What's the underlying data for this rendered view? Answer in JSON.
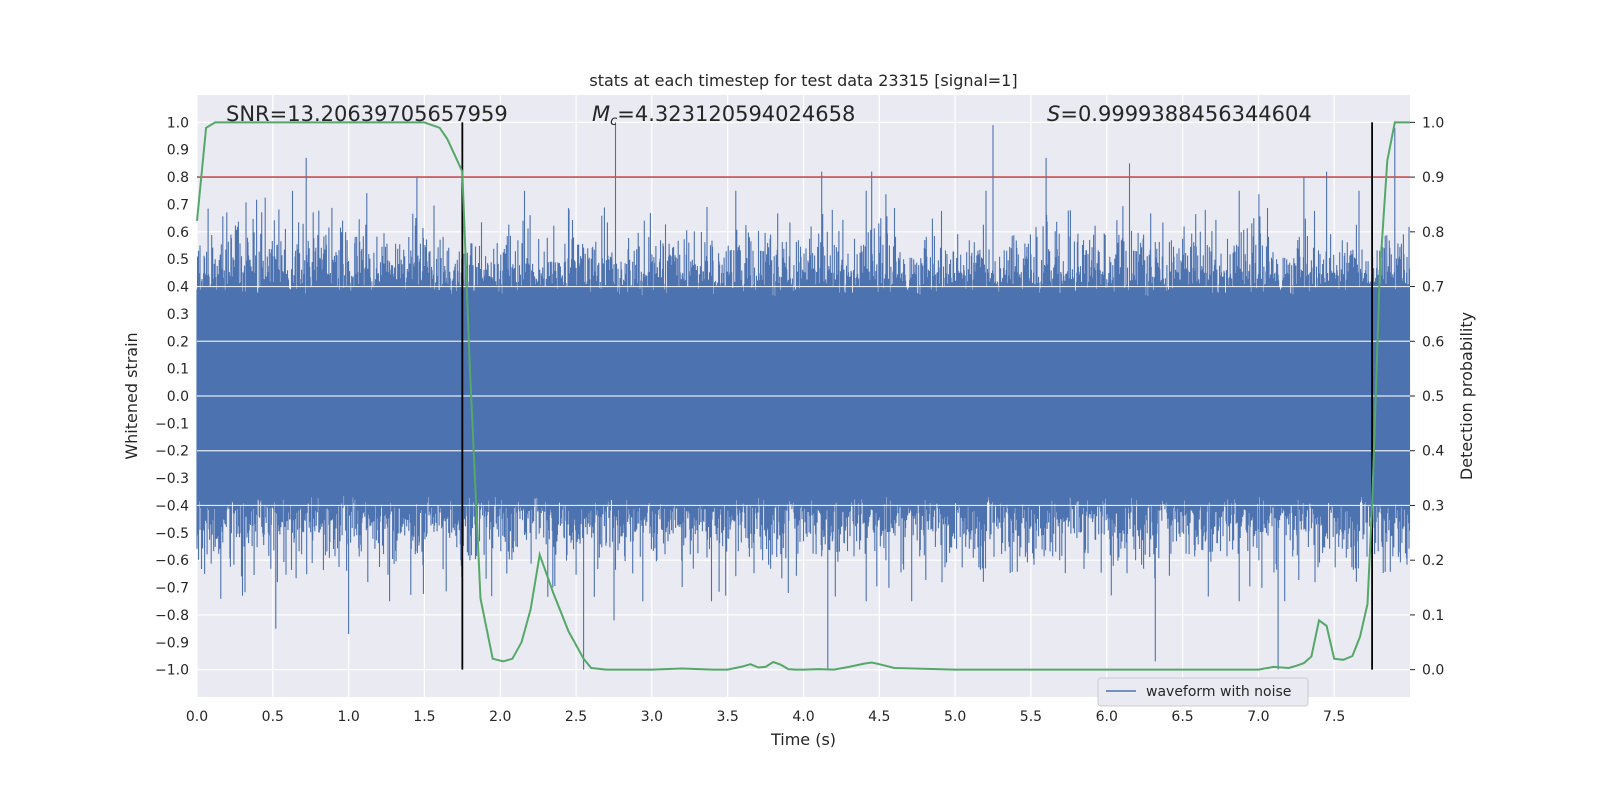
{
  "chart_data": {
    "type": "line",
    "title": "stats at each timestep for test data 23315 [signal=1]",
    "xlabel": "Time (s)",
    "ylabel_left": "Whitened strain",
    "ylabel_right": "Detection probability",
    "xlim": [
      0.0,
      8.0
    ],
    "ylim_left": [
      -1.1,
      1.1
    ],
    "ylim_right": [
      -0.05,
      1.05
    ],
    "x_ticks": [
      0.0,
      0.5,
      1.0,
      1.5,
      2.0,
      2.5,
      3.0,
      3.5,
      4.0,
      4.5,
      5.0,
      5.5,
      6.0,
      6.5,
      7.0,
      7.5
    ],
    "x_tick_labels": [
      "0.0",
      "0.5",
      "1.0",
      "1.5",
      "2.0",
      "2.5",
      "3.0",
      "3.5",
      "4.0",
      "4.5",
      "5.0",
      "5.5",
      "6.0",
      "6.5",
      "7.0",
      "7.5"
    ],
    "y_left_ticks": [
      1.0,
      0.9,
      0.8,
      0.7,
      0.6,
      0.5,
      0.4,
      0.3,
      0.2,
      0.1,
      0.0,
      -0.1,
      -0.2,
      -0.3,
      -0.4,
      -0.5,
      -0.6,
      -0.7,
      -0.8,
      -0.9,
      -1.0
    ],
    "y_left_tick_labels": [
      "1.0",
      "0.9",
      "0.8",
      "0.7",
      "0.6",
      "0.5",
      "0.4",
      "0.3",
      "0.2",
      "0.1",
      "0.0",
      "−0.1",
      "−0.2",
      "−0.3",
      "−0.4",
      "−0.5",
      "−0.6",
      "−0.7",
      "−0.8",
      "−0.9",
      "−1.0"
    ],
    "y_right_ticks": [
      1.0,
      0.9,
      0.8,
      0.7,
      0.6,
      0.5,
      0.4,
      0.3,
      0.2,
      0.1,
      0.0
    ],
    "y_right_tick_labels": [
      "1.0",
      "0.9",
      "0.8",
      "0.7",
      "0.6",
      "0.5",
      "0.4",
      "0.3",
      "0.2",
      "0.1",
      "0.0"
    ],
    "annotations": {
      "snr": "SNR=13.206397056579 59",
      "mc": "Mᴄ=4.323120594024658",
      "s": "S=0.9999388456344604"
    },
    "threshold_line": {
      "axis": "right",
      "value": 0.9,
      "color": "#c44e52"
    },
    "vertical_markers": {
      "x": [
        1.75,
        7.75
      ],
      "color": "#000000"
    },
    "series": [
      {
        "name": "waveform with noise",
        "axis": "left",
        "color": "#4c72b0",
        "kind": "noise",
        "envelope_typical": 0.55,
        "peaks": [
          {
            "x": 0.02,
            "y": 0.55
          },
          {
            "x": 0.05,
            "y": -0.65
          },
          {
            "x": 0.3,
            "y": -0.73
          },
          {
            "x": 0.52,
            "y": -0.85
          },
          {
            "x": 0.72,
            "y": 0.87
          },
          {
            "x": 1.0,
            "y": -0.87
          },
          {
            "x": 1.45,
            "y": 0.8
          },
          {
            "x": 1.74,
            "y": -0.6
          },
          {
            "x": 2.55,
            "y": -1.0
          },
          {
            "x": 2.76,
            "y": 1.0
          },
          {
            "x": 2.75,
            "y": -0.82
          },
          {
            "x": 3.9,
            "y": -0.72
          },
          {
            "x": 4.12,
            "y": 0.82
          },
          {
            "x": 4.16,
            "y": -1.0
          },
          {
            "x": 4.45,
            "y": 0.82
          },
          {
            "x": 5.25,
            "y": 0.99
          },
          {
            "x": 5.6,
            "y": 0.87
          },
          {
            "x": 6.15,
            "y": 0.85
          },
          {
            "x": 6.32,
            "y": -0.97
          },
          {
            "x": 7.13,
            "y": -1.0
          },
          {
            "x": 7.3,
            "y": 0.8
          },
          {
            "x": 7.45,
            "y": 0.82
          },
          {
            "x": 7.9,
            "y": 0.98
          }
        ]
      },
      {
        "name": "detection probability",
        "axis": "right",
        "color": "#55a868",
        "x": [
          0.0,
          0.06,
          0.12,
          0.25,
          0.5,
          1.0,
          1.5,
          1.6,
          1.65,
          1.7,
          1.75,
          1.8,
          1.87,
          1.95,
          2.02,
          2.08,
          2.14,
          2.2,
          2.26,
          2.35,
          2.45,
          2.55,
          2.6,
          2.7,
          3.0,
          3.2,
          3.4,
          3.5,
          3.6,
          3.65,
          3.7,
          3.75,
          3.8,
          3.85,
          3.9,
          3.95,
          4.0,
          4.1,
          4.2,
          4.3,
          4.4,
          4.45,
          4.5,
          4.6,
          5.0,
          6.0,
          6.5,
          7.0,
          7.1,
          7.2,
          7.25,
          7.3,
          7.35,
          7.4,
          7.45,
          7.5,
          7.56,
          7.62,
          7.67,
          7.72,
          7.75,
          7.8,
          7.85,
          7.9,
          7.95,
          8.0
        ],
        "y": [
          0.82,
          0.99,
          1.0,
          1.0,
          1.0,
          1.0,
          1.0,
          0.99,
          0.97,
          0.94,
          0.91,
          0.55,
          0.13,
          0.02,
          0.015,
          0.02,
          0.05,
          0.11,
          0.21,
          0.14,
          0.07,
          0.02,
          0.003,
          0.0,
          0.0,
          0.002,
          0.0,
          0.0,
          0.006,
          0.01,
          0.004,
          0.005,
          0.014,
          0.009,
          0.001,
          0.0,
          0.0,
          0.001,
          0.0,
          0.005,
          0.011,
          0.013,
          0.01,
          0.003,
          0.0,
          0.0,
          0.0,
          0.0,
          0.005,
          0.003,
          0.007,
          0.012,
          0.024,
          0.09,
          0.08,
          0.02,
          0.018,
          0.025,
          0.06,
          0.12,
          0.3,
          0.72,
          0.93,
          1.0,
          1.0,
          1.0
        ]
      }
    ],
    "legend": {
      "entries": [
        "waveform with noise"
      ],
      "placement": "bottom-right"
    }
  }
}
